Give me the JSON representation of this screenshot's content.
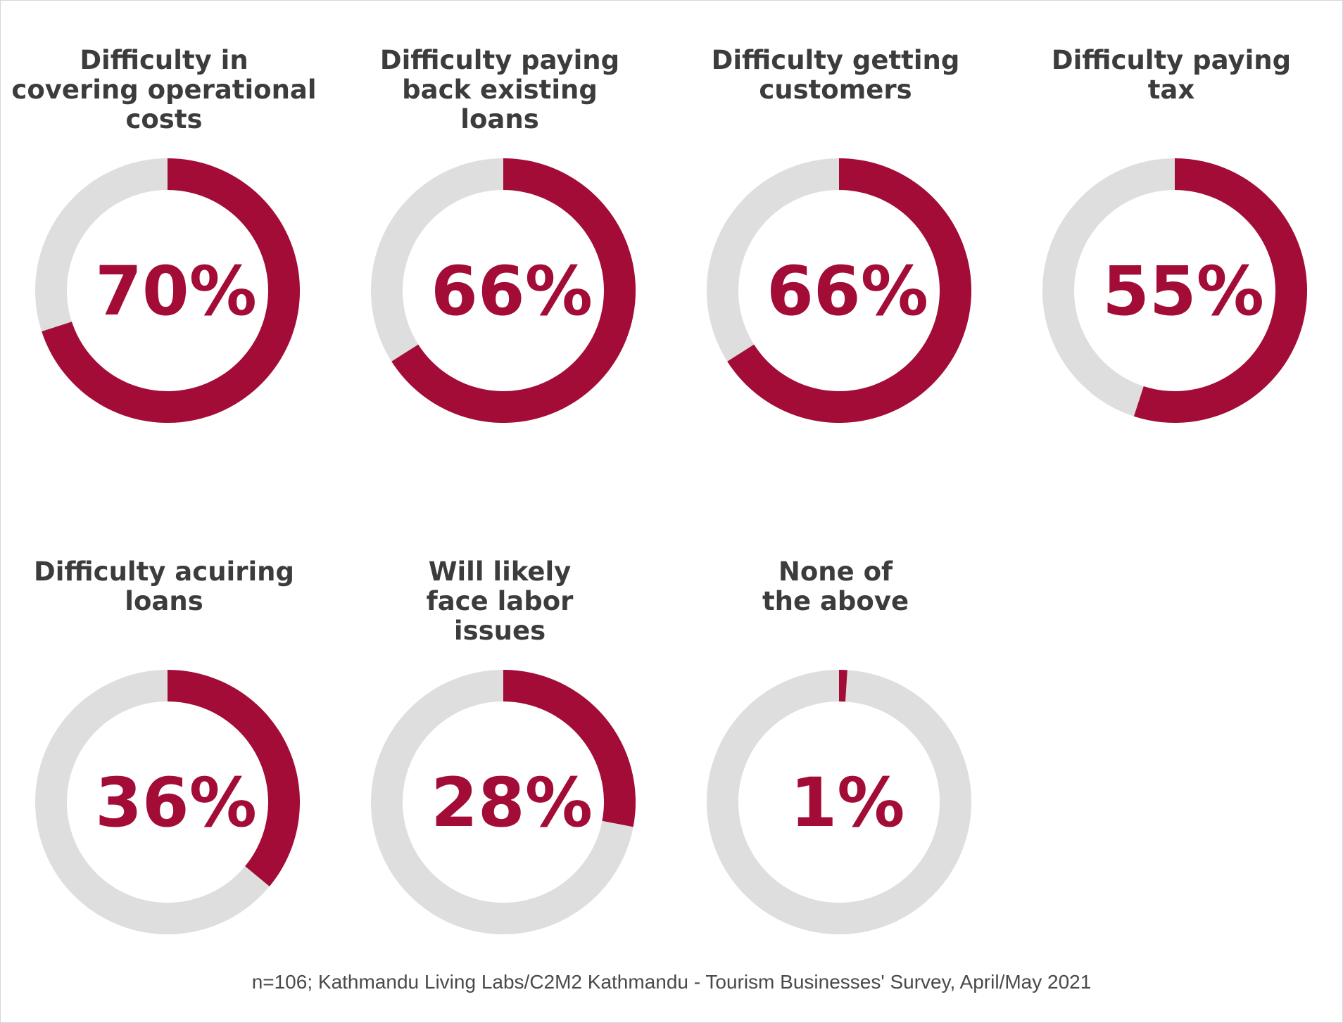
{
  "chart_data": {
    "type": "donut",
    "unit": "%",
    "colors": {
      "filled": "#a30c36",
      "remainder": "#dedede",
      "label": "#3c3c3c",
      "value": "#a30c36"
    },
    "items": [
      {
        "label_lines": [
          "Difficulty in",
          "covering operational",
          "costs"
        ],
        "value": 70,
        "value_label": "70%"
      },
      {
        "label_lines": [
          "Difficulty paying",
          "back existing",
          "loans"
        ],
        "value": 66,
        "value_label": "66%"
      },
      {
        "label_lines": [
          "Difficulty getting",
          "customers"
        ],
        "value": 66,
        "value_label": "66%"
      },
      {
        "label_lines": [
          "Difficulty paying",
          "tax"
        ],
        "value": 55,
        "value_label": "55%"
      },
      {
        "label_lines": [
          "Difficulty acuiring",
          "loans"
        ],
        "value": 36,
        "value_label": "36%"
      },
      {
        "label_lines": [
          "Will likely",
          "face labor",
          "issues"
        ],
        "value": 28,
        "value_label": "28%"
      },
      {
        "label_lines": [
          "None of",
          "the above"
        ],
        "value": 1,
        "value_label": "1%"
      }
    ],
    "source": "n=106; Kathmandu Living Labs/C2M2 Kathmandu - Tourism Businesses' Survey, April/May 2021"
  }
}
